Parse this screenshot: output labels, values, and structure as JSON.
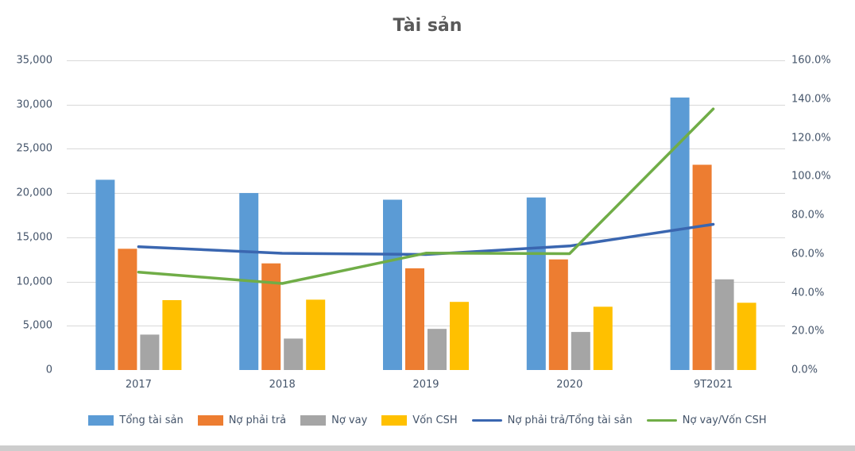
{
  "title": "Tài sản",
  "colors": {
    "bar_blue": "#5B9BD5",
    "bar_orange": "#ED7D31",
    "bar_gray": "#A5A5A5",
    "bar_yellow": "#FFC000",
    "line_blue": "#3A66B0",
    "line_green": "#70AD47",
    "axis_text": "#44546A",
    "title_text": "#595959",
    "gridline": "#D9D9D9",
    "axis_line": "#BFBFBF"
  },
  "chart_data": {
    "type": "bar+line",
    "title": "Tài sản",
    "categories": [
      "2017",
      "2018",
      "2019",
      "2020",
      "9T2021"
    ],
    "bar_series": [
      {
        "name": "Tổng tài sản",
        "color": "#5B9BD5",
        "axis": "left",
        "values": [
          21500,
          20000,
          19250,
          19500,
          30800
        ]
      },
      {
        "name": "Nợ phải trả",
        "color": "#ED7D31",
        "axis": "left",
        "values": [
          13700,
          12050,
          11500,
          12500,
          23200
        ]
      },
      {
        "name": "Nợ vay",
        "color": "#A5A5A5",
        "axis": "left",
        "values": [
          4000,
          3550,
          4650,
          4300,
          10250
        ]
      },
      {
        "name": "Vốn CSH",
        "color": "#FFC000",
        "axis": "left",
        "values": [
          7900,
          7950,
          7700,
          7150,
          7600
        ]
      }
    ],
    "line_series": [
      {
        "name": "Nợ phải trả/Tổng tài sản",
        "color": "#3A66B0",
        "axis": "right",
        "values": [
          63.7,
          60.3,
          59.7,
          64.1,
          75.3
        ]
      },
      {
        "name": "Nợ vay/Vốn CSH",
        "color": "#70AD47",
        "axis": "right",
        "values": [
          50.6,
          44.7,
          60.4,
          60.1,
          134.9
        ]
      }
    ],
    "left_axis": {
      "min": 0,
      "max": 35000,
      "step": 5000,
      "tick_labels": [
        "0",
        "5,000",
        "10,000",
        "15,000",
        "20,000",
        "25,000",
        "30,000",
        "35,000"
      ]
    },
    "right_axis": {
      "min": 0,
      "max": 160,
      "step": 20,
      "tick_labels": [
        "0.0%",
        "20.0%",
        "40.0%",
        "60.0%",
        "80.0%",
        "100.0%",
        "120.0%",
        "140.0%",
        "160.0%"
      ]
    },
    "xlabel": "",
    "ylabel": "",
    "grid": true,
    "legend_position": "bottom"
  }
}
